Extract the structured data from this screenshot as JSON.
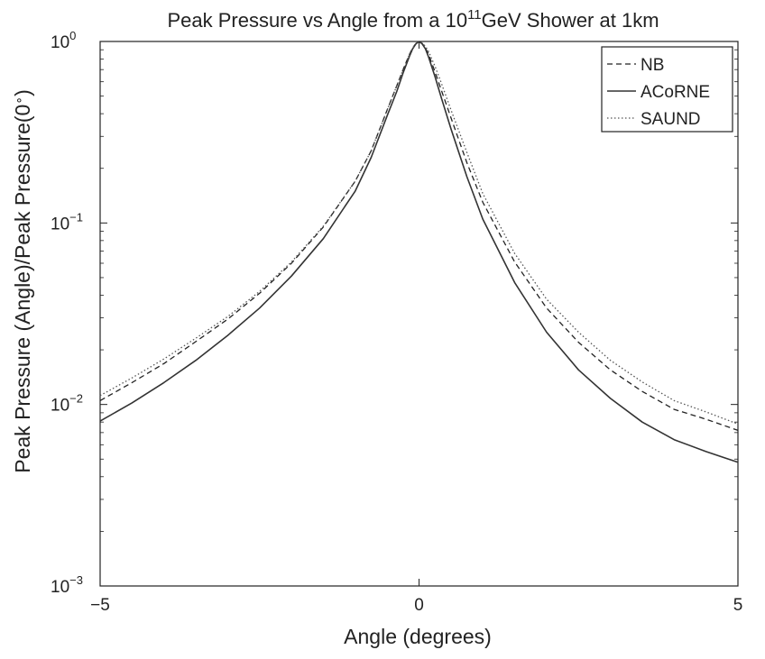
{
  "chart_data": {
    "type": "line",
    "title": "Peak Pressure vs Angle from a 10^11 GeV Shower at 1km",
    "title_parts": {
      "before": "Peak Pressure vs Angle from a 10",
      "sup": "11",
      "after": "GeV Shower at 1km"
    },
    "xlabel": "Angle (degrees)",
    "ylabel": "Peak Pressure (Angle)/Peak Pressure(0°)",
    "ylabel_parts": {
      "main": "Peak Pressure (Angle)/Peak Pressure(0",
      "sup": "∘",
      "close": ")"
    },
    "xlim": [
      -5,
      5
    ],
    "ylim": [
      0.001,
      1
    ],
    "yscale": "log",
    "xticks": [
      -5,
      0,
      5
    ],
    "xtick_labels": [
      "−5",
      "0",
      "5"
    ],
    "yticks": [
      {
        "value": 1,
        "base": "10",
        "exp": "0"
      },
      {
        "value": 0.1,
        "base": "10",
        "exp": "−1"
      },
      {
        "value": 0.01,
        "base": "10",
        "exp": "−2"
      },
      {
        "value": 0.001,
        "base": "10",
        "exp": "−3"
      }
    ],
    "grid": false,
    "legend_position": "top-right",
    "series": [
      {
        "name": "NB",
        "style": "dashed",
        "color": "#222222",
        "x": [
          -5,
          -4.5,
          -4,
          -3.5,
          -3,
          -2.5,
          -2,
          -1.5,
          -1,
          -0.75,
          -0.5,
          -0.35,
          -0.25,
          -0.15,
          -0.1,
          -0.05,
          0,
          0.05,
          0.1,
          0.15,
          0.25,
          0.35,
          0.5,
          0.75,
          1,
          1.5,
          2,
          2.5,
          3,
          3.5,
          4,
          4.5,
          5
        ],
        "y": [
          0.0105,
          0.0132,
          0.0168,
          0.0222,
          0.0295,
          0.041,
          0.06,
          0.095,
          0.17,
          0.25,
          0.42,
          0.57,
          0.7,
          0.85,
          0.92,
          0.975,
          1.0,
          0.975,
          0.92,
          0.85,
          0.68,
          0.54,
          0.38,
          0.215,
          0.13,
          0.061,
          0.034,
          0.022,
          0.0155,
          0.0118,
          0.0094,
          0.0083,
          0.0072
        ]
      },
      {
        "name": "ACoRNE",
        "style": "solid",
        "color": "#333333",
        "x": [
          -5,
          -4.5,
          -4,
          -3.5,
          -3,
          -2.5,
          -2,
          -1.5,
          -1,
          -0.75,
          -0.5,
          -0.35,
          -0.25,
          -0.15,
          -0.1,
          -0.05,
          0,
          0.05,
          0.1,
          0.15,
          0.25,
          0.35,
          0.5,
          0.75,
          1,
          1.5,
          2,
          2.5,
          3,
          3.5,
          4,
          4.5,
          5
        ],
        "y": [
          0.0081,
          0.0102,
          0.0132,
          0.0175,
          0.024,
          0.034,
          0.051,
          0.082,
          0.15,
          0.23,
          0.39,
          0.53,
          0.67,
          0.83,
          0.91,
          0.97,
          1.0,
          0.97,
          0.91,
          0.82,
          0.64,
          0.49,
          0.33,
          0.18,
          0.105,
          0.047,
          0.025,
          0.0155,
          0.0108,
          0.008,
          0.0064,
          0.0055,
          0.0048
        ]
      },
      {
        "name": "SAUND",
        "style": "dotted",
        "color": "#555555",
        "x": [
          -5,
          -4.5,
          -4,
          -3.5,
          -3,
          -2.5,
          -2,
          -1.5,
          -1,
          -0.75,
          -0.5,
          -0.35,
          -0.25,
          -0.15,
          -0.1,
          -0.05,
          0,
          0.05,
          0.1,
          0.15,
          0.25,
          0.35,
          0.5,
          0.75,
          1,
          1.5,
          2,
          2.5,
          3,
          3.5,
          4,
          4.5,
          5
        ],
        "y": [
          0.0112,
          0.014,
          0.0178,
          0.0232,
          0.0305,
          0.042,
          0.061,
          0.096,
          0.17,
          0.25,
          0.42,
          0.57,
          0.7,
          0.85,
          0.92,
          0.975,
          1.0,
          0.98,
          0.94,
          0.88,
          0.73,
          0.59,
          0.42,
          0.245,
          0.145,
          0.068,
          0.038,
          0.025,
          0.0175,
          0.0133,
          0.0105,
          0.0091,
          0.0078
        ]
      }
    ]
  }
}
